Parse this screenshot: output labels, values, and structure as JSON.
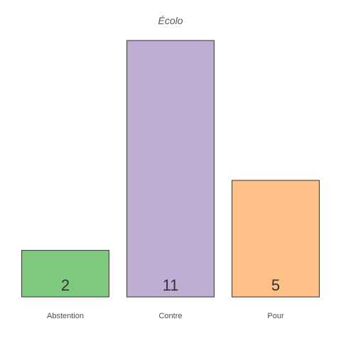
{
  "chart_data": {
    "type": "bar",
    "title": "Écolo",
    "xlabel": "",
    "ylabel": "",
    "categories": [
      "Abstention",
      "Contre",
      "Pour"
    ],
    "values": [
      2,
      11,
      5
    ],
    "colors": [
      "#7fc97f",
      "#beaed4",
      "#fdc086"
    ],
    "ylim": [
      0,
      11
    ],
    "grid": false,
    "legend": "none"
  }
}
